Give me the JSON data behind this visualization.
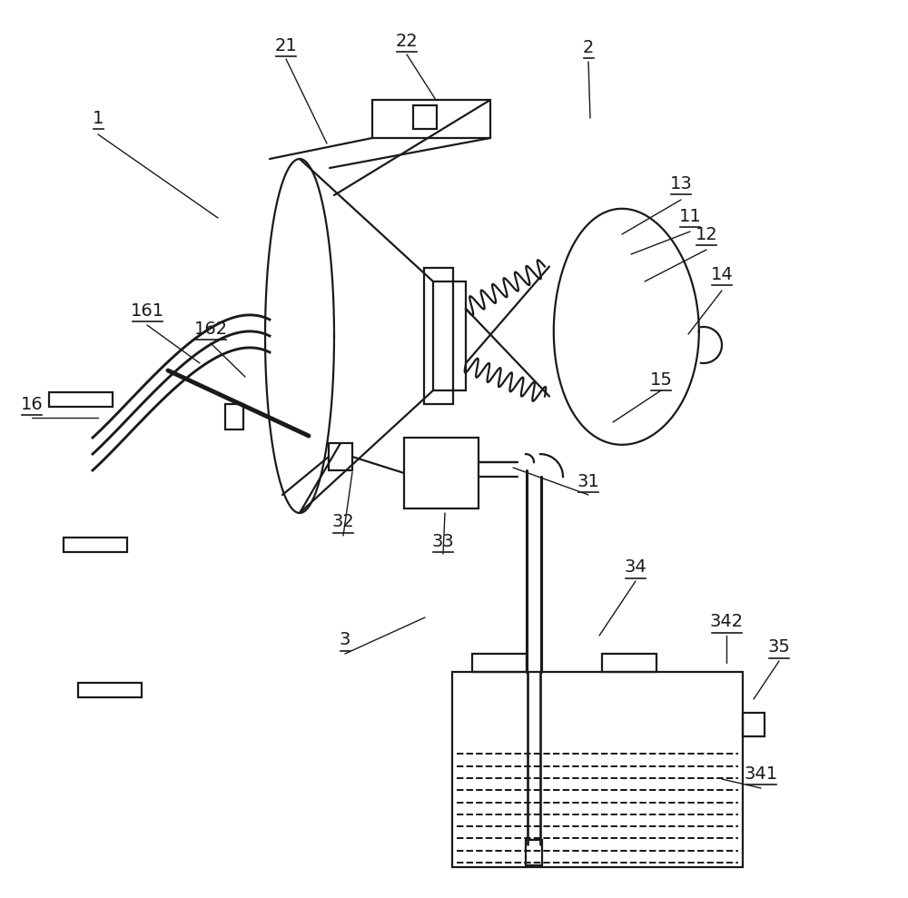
{
  "bg_color": "#ffffff",
  "lc": "#1a1a1a",
  "lw": 1.6,
  "figsize": [
    10.0,
    9.89
  ],
  "dpi": 100
}
